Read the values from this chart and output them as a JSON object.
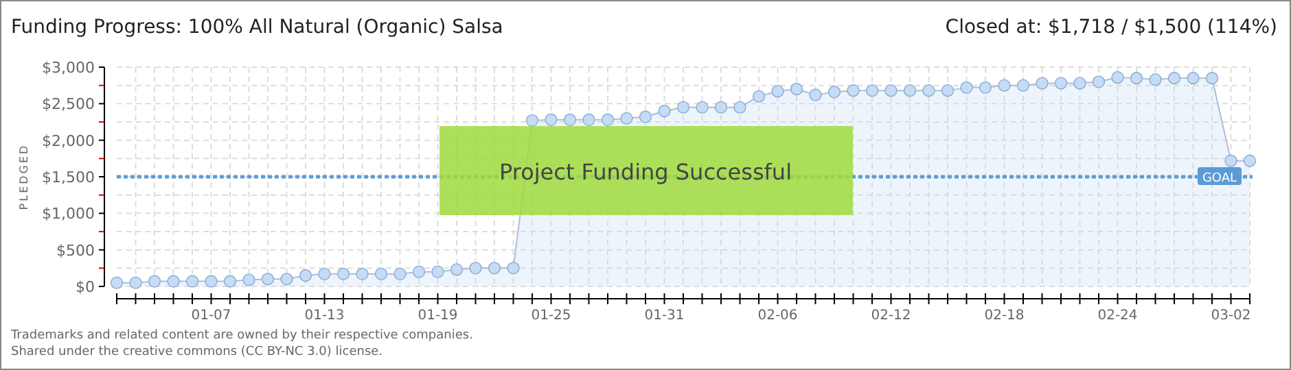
{
  "chart_data": {
    "type": "area",
    "title": "Funding Progress: 100% All Natural (Organic) Salsa",
    "subtitle": "Closed at: $1,718 / $1,500 (114%)",
    "ylabel": "PLEDGED",
    "x": [
      "--01-02",
      "--01-03",
      "--01-04",
      "--01-05",
      "--01-06",
      "--01-07",
      "--01-08",
      "--01-09",
      "--01-10",
      "--01-11",
      "--01-12",
      "--01-13",
      "--01-14",
      "--01-15",
      "--01-16",
      "--01-17",
      "--01-18",
      "--01-19",
      "--01-20",
      "--01-21",
      "--01-22",
      "--01-23",
      "--01-24",
      "--01-25",
      "--01-26",
      "--01-27",
      "--01-28",
      "--01-29",
      "--01-30",
      "--01-31",
      "--02-01",
      "--02-02",
      "--02-03",
      "--02-04",
      "--02-05",
      "--02-06",
      "--02-07",
      "--02-08",
      "--02-09",
      "--02-10",
      "--02-11",
      "--02-12",
      "--02-13",
      "--02-14",
      "--02-15",
      "--02-16",
      "--02-17",
      "--02-18",
      "--02-19",
      "--02-20",
      "--02-21",
      "--02-22",
      "--02-23",
      "--02-24",
      "--02-25",
      "--02-26",
      "--02-27",
      "--02-28",
      "--03-01",
      "--03-02",
      "--03-03"
    ],
    "series": [
      {
        "color": "#c6dcf5",
        "values": [
          50,
          50,
          70,
          70,
          70,
          70,
          70,
          90,
          100,
          100,
          150,
          170,
          170,
          170,
          170,
          170,
          200,
          200,
          230,
          250,
          250,
          250,
          2270,
          2280,
          2280,
          2280,
          2280,
          2300,
          2320,
          2400,
          2450,
          2450,
          2450,
          2450,
          2600,
          2670,
          2700,
          2620,
          2660,
          2680,
          2680,
          2680,
          2680,
          2680,
          2680,
          2720,
          2720,
          2750,
          2750,
          2780,
          2780,
          2780,
          2800,
          2860,
          2850,
          2830,
          2850,
          2850,
          2850,
          1718,
          1718
        ]
      }
    ],
    "marker": "circle",
    "grid": true,
    "xlim": [
      "--01-02",
      "--03-03"
    ],
    "xticks": [
      {
        "value": "--01-03",
        "label": null
      },
      {
        "value": "--01-04",
        "label": null
      },
      {
        "value": "--01-05",
        "label": null
      },
      {
        "value": "--01-06",
        "label": null
      },
      {
        "value": "--01-07",
        "label": "01-07"
      },
      {
        "value": "--01-08",
        "label": null
      },
      {
        "value": "--01-09",
        "label": null
      },
      {
        "value": "--01-10",
        "label": null
      },
      {
        "value": "--01-11",
        "label": null
      },
      {
        "value": "--01-12",
        "label": null
      },
      {
        "value": "--01-13",
        "label": "01-13"
      },
      {
        "value": "--01-14",
        "label": null
      },
      {
        "value": "--01-15",
        "label": null
      },
      {
        "value": "--01-16",
        "label": null
      },
      {
        "value": "--01-17",
        "label": null
      },
      {
        "value": "--01-18",
        "label": null
      },
      {
        "value": "--01-19",
        "label": "01-19"
      },
      {
        "value": "--01-20",
        "label": null
      },
      {
        "value": "--01-21",
        "label": null
      },
      {
        "value": "--01-22",
        "label": null
      },
      {
        "value": "--01-23",
        "label": null
      },
      {
        "value": "--01-24",
        "label": null
      },
      {
        "value": "--01-25",
        "label": "01-25"
      },
      {
        "value": "--01-26",
        "label": null
      },
      {
        "value": "--01-27",
        "label": null
      },
      {
        "value": "--01-28",
        "label": null
      },
      {
        "value": "--01-29",
        "label": null
      },
      {
        "value": "--01-30",
        "label": null
      },
      {
        "value": "--01-31",
        "label": "01-31"
      },
      {
        "value": "--02-01",
        "label": null
      },
      {
        "value": "--02-02",
        "label": null
      },
      {
        "value": "--02-03",
        "label": null
      },
      {
        "value": "--02-04",
        "label": null
      },
      {
        "value": "--02-05",
        "label": null
      },
      {
        "value": "--02-06",
        "label": "02-06"
      },
      {
        "value": "--02-07",
        "label": null
      },
      {
        "value": "--02-08",
        "label": null
      },
      {
        "value": "--02-09",
        "label": null
      },
      {
        "value": "--02-10",
        "label": null
      },
      {
        "value": "--02-11",
        "label": null
      },
      {
        "value": "--02-12",
        "label": "02-12"
      },
      {
        "value": "--02-13",
        "label": null
      },
      {
        "value": "--02-14",
        "label": null
      },
      {
        "value": "--02-15",
        "label": null
      },
      {
        "value": "--02-16",
        "label": null
      },
      {
        "value": "--02-17",
        "label": null
      },
      {
        "value": "--02-18",
        "label": "02-18"
      },
      {
        "value": "--02-19",
        "label": null
      },
      {
        "value": "--02-20",
        "label": null
      },
      {
        "value": "--02-21",
        "label": null
      },
      {
        "value": "--02-22",
        "label": null
      },
      {
        "value": "--02-23",
        "label": null
      },
      {
        "value": "--02-24",
        "label": "02-24"
      },
      {
        "value": "--02-25",
        "label": null
      },
      {
        "value": "--02-26",
        "label": null
      },
      {
        "value": "--02-27",
        "label": null
      },
      {
        "value": "--02-28",
        "label": null
      },
      {
        "value": "--03-01",
        "label": null
      },
      {
        "value": "--03-02",
        "label": "03-02"
      },
      {
        "value": "--03-03",
        "label": null
      }
    ],
    "ylim": [
      0,
      3000
    ],
    "yticks": [
      {
        "value": 0,
        "label": "$0"
      },
      {
        "value": 250,
        "label": null
      },
      {
        "value": 500,
        "label": "$500"
      },
      {
        "value": 750,
        "label": null
      },
      {
        "value": 1000,
        "label": "$1,000"
      },
      {
        "value": 1250,
        "label": null
      },
      {
        "value": 1500,
        "label": "$1,500"
      },
      {
        "value": 1750,
        "label": null
      },
      {
        "value": 2000,
        "label": "$2,000"
      },
      {
        "value": 2250,
        "label": null
      },
      {
        "value": 2500,
        "label": "$2,500"
      },
      {
        "value": 2750,
        "label": null
      },
      {
        "value": 3000,
        "label": "$3,000"
      }
    ],
    "ref_lines": [
      {
        "axis": "y",
        "value": 1500,
        "label": "GOAL",
        "color": "#5b9bd5",
        "line_style": "dotted"
      }
    ],
    "annotations": [
      "Project Funding Successful",
      "Trademarks and related content are owned by their respective companies.",
      "Shared under the creative commons (CC BY-NC 3.0) license."
    ]
  }
}
